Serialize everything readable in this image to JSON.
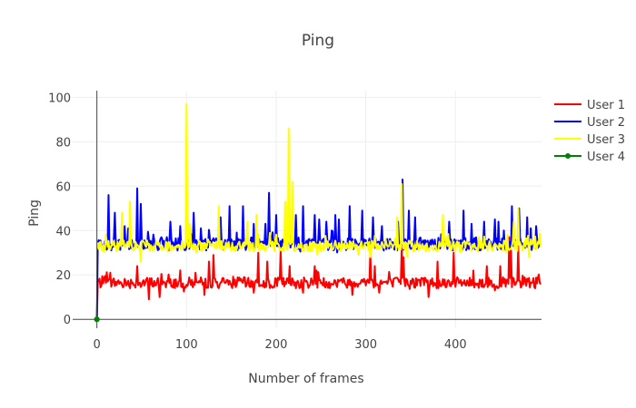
{
  "chart_data": {
    "type": "line",
    "title": "Ping",
    "xlabel": "Number of frames",
    "ylabel": "Ping",
    "xlim": [
      -27,
      496
    ],
    "ylim": [
      -4,
      103
    ],
    "xticks": [
      0,
      100,
      200,
      300,
      400
    ],
    "yticks": [
      0,
      20,
      40,
      60,
      80,
      100
    ],
    "grid": true,
    "legend_position": "top-right",
    "n_frames": 496,
    "series": [
      {
        "name": "User 1",
        "color": "#ff0000",
        "base": 16.5,
        "noise": 2.5,
        "first": 0,
        "events": [
          [
            15,
            21
          ],
          [
            45,
            24
          ],
          [
            110,
            21
          ],
          [
            125,
            26
          ],
          [
            130,
            29
          ],
          [
            180,
            30
          ],
          [
            190,
            26
          ],
          [
            205,
            31
          ],
          [
            215,
            24
          ],
          [
            243,
            24
          ],
          [
            245,
            22
          ],
          [
            305,
            30
          ],
          [
            310,
            24
          ],
          [
            340,
            32
          ],
          [
            342,
            28
          ],
          [
            380,
            26
          ],
          [
            398,
            30
          ],
          [
            420,
            22
          ],
          [
            435,
            24
          ],
          [
            450,
            24
          ],
          [
            460,
            37
          ],
          [
            462,
            31
          ],
          [
            470,
            33
          ],
          [
            58,
            9
          ],
          [
            70,
            10
          ],
          [
            120,
            11
          ],
          [
            175,
            12
          ],
          [
            230,
            12
          ],
          [
            285,
            11
          ],
          [
            315,
            12
          ],
          [
            370,
            10
          ]
        ]
      },
      {
        "name": "User 2",
        "color": "#0000ff",
        "base": 34,
        "noise": 3,
        "first": 0,
        "events": [
          [
            13,
            56
          ],
          [
            20,
            48
          ],
          [
            31,
            42
          ],
          [
            35,
            41
          ],
          [
            45,
            59
          ],
          [
            49,
            52
          ],
          [
            82,
            44
          ],
          [
            93,
            42
          ],
          [
            108,
            48
          ],
          [
            116,
            41
          ],
          [
            138,
            46
          ],
          [
            148,
            51
          ],
          [
            163,
            51
          ],
          [
            175,
            43
          ],
          [
            188,
            43
          ],
          [
            192,
            57
          ],
          [
            200,
            47
          ],
          [
            222,
            47
          ],
          [
            230,
            51
          ],
          [
            243,
            47
          ],
          [
            248,
            45
          ],
          [
            256,
            44
          ],
          [
            266,
            47
          ],
          [
            270,
            45
          ],
          [
            282,
            51
          ],
          [
            296,
            49
          ],
          [
            308,
            46
          ],
          [
            318,
            42
          ],
          [
            336,
            44
          ],
          [
            341,
            63
          ],
          [
            348,
            49
          ],
          [
            355,
            46
          ],
          [
            386,
            41
          ],
          [
            393,
            44
          ],
          [
            409,
            49
          ],
          [
            418,
            43
          ],
          [
            432,
            44
          ],
          [
            444,
            45
          ],
          [
            448,
            44
          ],
          [
            454,
            40
          ],
          [
            463,
            51
          ],
          [
            471,
            50
          ],
          [
            480,
            46
          ],
          [
            484,
            41
          ],
          [
            490,
            42
          ]
        ]
      },
      {
        "name": "User 3",
        "color": "#ffff00",
        "base": 33,
        "noise": 2.5,
        "first": 32,
        "events": [
          [
            28,
            48
          ],
          [
            37,
            53
          ],
          [
            49,
            26
          ],
          [
            100,
            97
          ],
          [
            104,
            43
          ],
          [
            118,
            34
          ],
          [
            136,
            51
          ],
          [
            168,
            44
          ],
          [
            178,
            47
          ],
          [
            210,
            53
          ],
          [
            214,
            86
          ],
          [
            218,
            62
          ],
          [
            235,
            31
          ],
          [
            246,
            29
          ],
          [
            292,
            29
          ],
          [
            305,
            28
          ],
          [
            335,
            46
          ],
          [
            340,
            61
          ],
          [
            346,
            28
          ],
          [
            366,
            33
          ],
          [
            386,
            47
          ],
          [
            426,
            37
          ],
          [
            442,
            32
          ],
          [
            446,
            33
          ],
          [
            458,
            38
          ],
          [
            465,
            44
          ],
          [
            470,
            50
          ],
          [
            476,
            33
          ],
          [
            482,
            28
          ]
        ]
      },
      {
        "name": "User 4",
        "color": "#008000",
        "points": [
          [
            0,
            0
          ]
        ]
      }
    ]
  }
}
